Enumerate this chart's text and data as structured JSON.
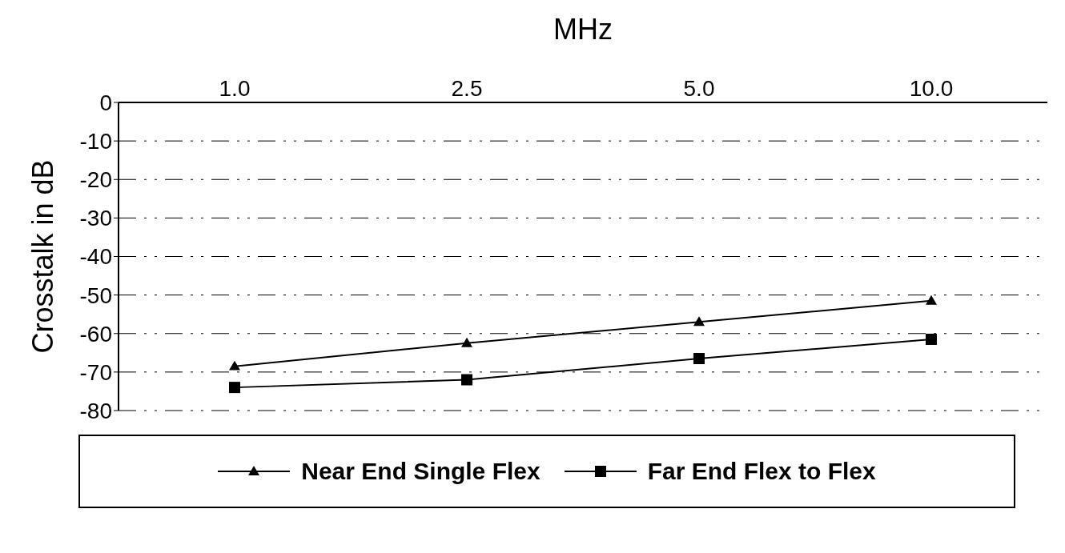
{
  "chart_data": {
    "type": "line",
    "xlabel": "MHz",
    "ylabel": "Crosstalk in dB",
    "categories": [
      "1.0",
      "2.5",
      "5.0",
      "10.0"
    ],
    "series": [
      {
        "name": "Near End Single Flex",
        "color": "#000000",
        "marker": "triangle",
        "values": [
          -68.5,
          -62.5,
          -57,
          -51.5
        ]
      },
      {
        "name": "Far End Flex to Flex",
        "color": "#000000",
        "marker": "square",
        "values": [
          -74,
          -72,
          -66.5,
          -61.5
        ]
      }
    ],
    "ylim": [
      -80,
      0
    ],
    "yticks": [
      -80,
      -70,
      -60,
      -50,
      -40,
      -30,
      -20,
      -10,
      0
    ],
    "grid": "y",
    "legend": "bottom",
    "line_style": "solid"
  }
}
